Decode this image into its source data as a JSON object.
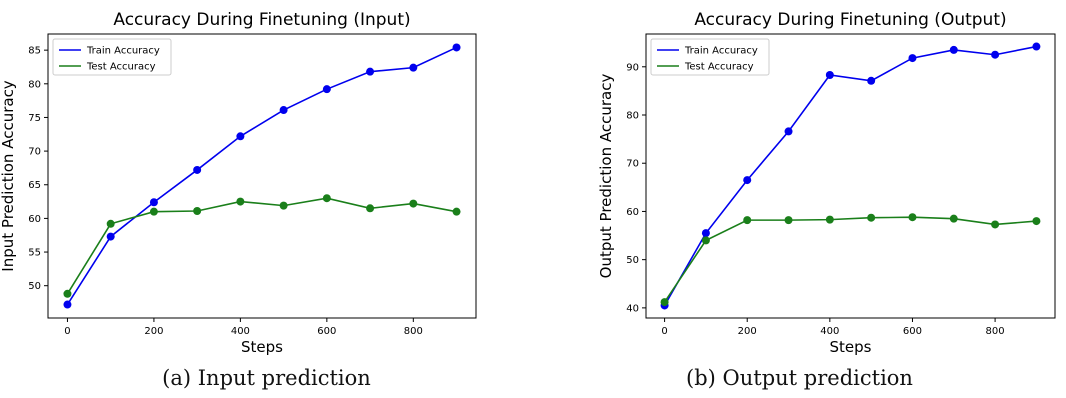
{
  "colors": {
    "train": "#0000ee",
    "test": "#1a7f1a"
  },
  "chart_data": [
    {
      "type": "line",
      "title": "Accuracy During Finetuning (Input)",
      "xlabel": "Steps",
      "ylabel": "Input Prediction Accuracy",
      "x": [
        0,
        100,
        200,
        300,
        400,
        500,
        600,
        700,
        800,
        900
      ],
      "series": [
        {
          "name": "Train Accuracy",
          "color": "#0000ee",
          "values": [
            47.2,
            57.3,
            62.4,
            67.2,
            72.2,
            76.1,
            79.2,
            81.8,
            82.4,
            85.4
          ]
        },
        {
          "name": "Test Accuracy",
          "color": "#1a7f1a",
          "values": [
            48.8,
            59.2,
            61.0,
            61.1,
            62.5,
            61.9,
            63.0,
            61.5,
            62.2,
            61.0
          ]
        }
      ],
      "xlim": [
        -45,
        945
      ],
      "ylim": [
        45.2,
        87.4
      ],
      "xticks": [
        0,
        200,
        400,
        600,
        800
      ],
      "yticks": [
        50,
        55,
        60,
        65,
        70,
        75,
        80,
        85
      ],
      "legend": "top-left",
      "grid": false,
      "caption": "(a) Input prediction"
    },
    {
      "type": "line",
      "title": "Accuracy During Finetuning (Output)",
      "xlabel": "Steps",
      "ylabel": "Output Prediction Accuracy",
      "x": [
        0,
        100,
        200,
        300,
        400,
        500,
        600,
        700,
        800,
        900
      ],
      "series": [
        {
          "name": "Train Accuracy",
          "color": "#0000ee",
          "values": [
            40.5,
            55.5,
            66.5,
            76.6,
            88.3,
            87.1,
            91.8,
            93.5,
            92.5,
            94.2
          ]
        },
        {
          "name": "Test Accuracy",
          "color": "#1a7f1a",
          "values": [
            41.2,
            54.0,
            58.2,
            58.2,
            58.3,
            58.7,
            58.8,
            58.5,
            57.3,
            58.0
          ]
        }
      ],
      "xlim": [
        -45,
        945
      ],
      "ylim": [
        37.9,
        96.8
      ],
      "xticks": [
        0,
        200,
        400,
        600,
        800
      ],
      "yticks": [
        40,
        50,
        60,
        70,
        80,
        90
      ],
      "legend": "top-left",
      "grid": false,
      "caption": "(b) Output prediction"
    }
  ]
}
